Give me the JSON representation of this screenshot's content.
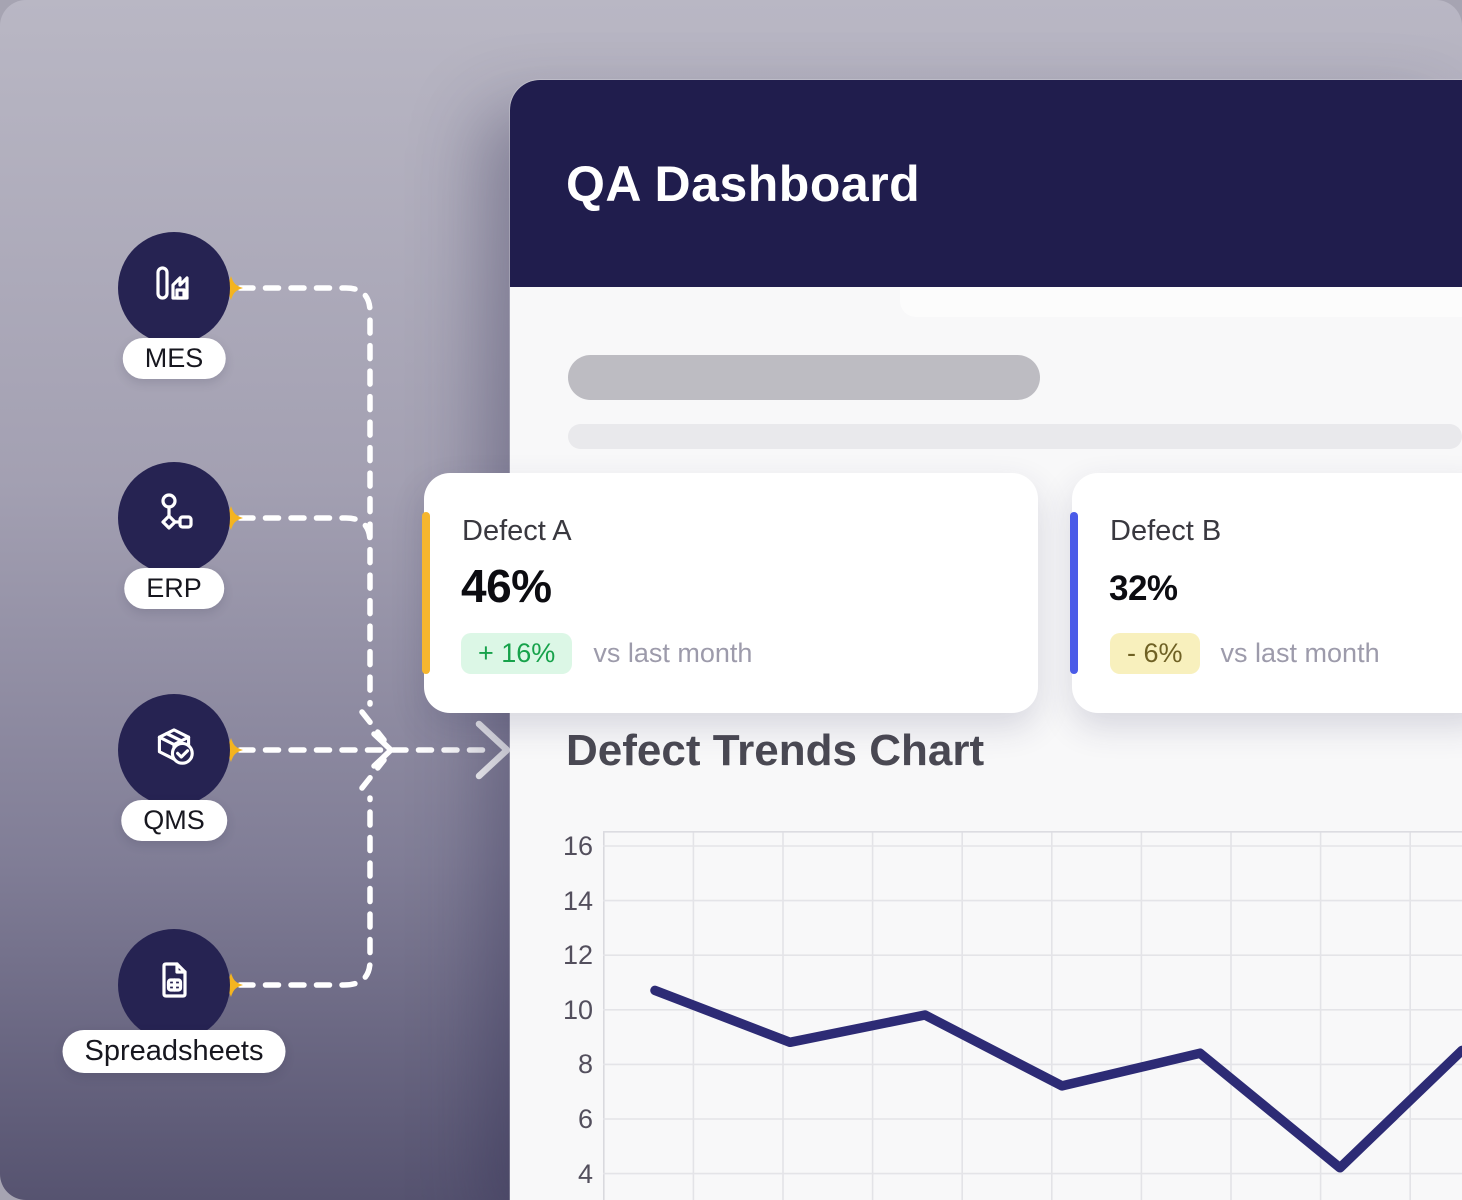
{
  "sources": {
    "items": [
      {
        "label": "MES",
        "icon": "factory-chart-icon"
      },
      {
        "label": "ERP",
        "icon": "workflow-icon"
      },
      {
        "label": "QMS",
        "icon": "package-check-icon"
      },
      {
        "label": "Spreadsheets",
        "icon": "spreadsheet-doc-icon"
      }
    ]
  },
  "dashboard": {
    "title": "QA Dashboard",
    "header_bg": "#201d4d",
    "body_bg": "#f8f8f9",
    "cards": [
      {
        "name": "Defect A",
        "value": "46%",
        "delta": "+ 16%",
        "note": "vs last month",
        "accent_color": "#f6b62e",
        "delta_bg": "#dcf7e6",
        "delta_text": "#17a24b"
      },
      {
        "name": "Defect B",
        "value": "32%",
        "delta": "- 6%",
        "note": "vs last month",
        "accent_color": "#4a5be8",
        "delta_bg": "#f8f0bd",
        "delta_text": "#6f6124"
      }
    ]
  },
  "chart_data": {
    "type": "line",
    "title": "Defect Trends Chart",
    "x": [
      1,
      2,
      3,
      4,
      5,
      6,
      7
    ],
    "values": [
      10.7,
      8.8,
      9.8,
      7.2,
      8.4,
      4.2,
      8.5
    ],
    "y_ticks": [
      16,
      14,
      12,
      10,
      8,
      6,
      4
    ],
    "ylim": [
      2.8,
      16.6
    ],
    "grid": true,
    "legend": false,
    "line_color": "#2d2b75"
  },
  "colors": {
    "connector": "#ffffff",
    "spark_dot": "#f4b41f",
    "background_top": "#b9b7c4",
    "background_bottom": "#565370"
  }
}
